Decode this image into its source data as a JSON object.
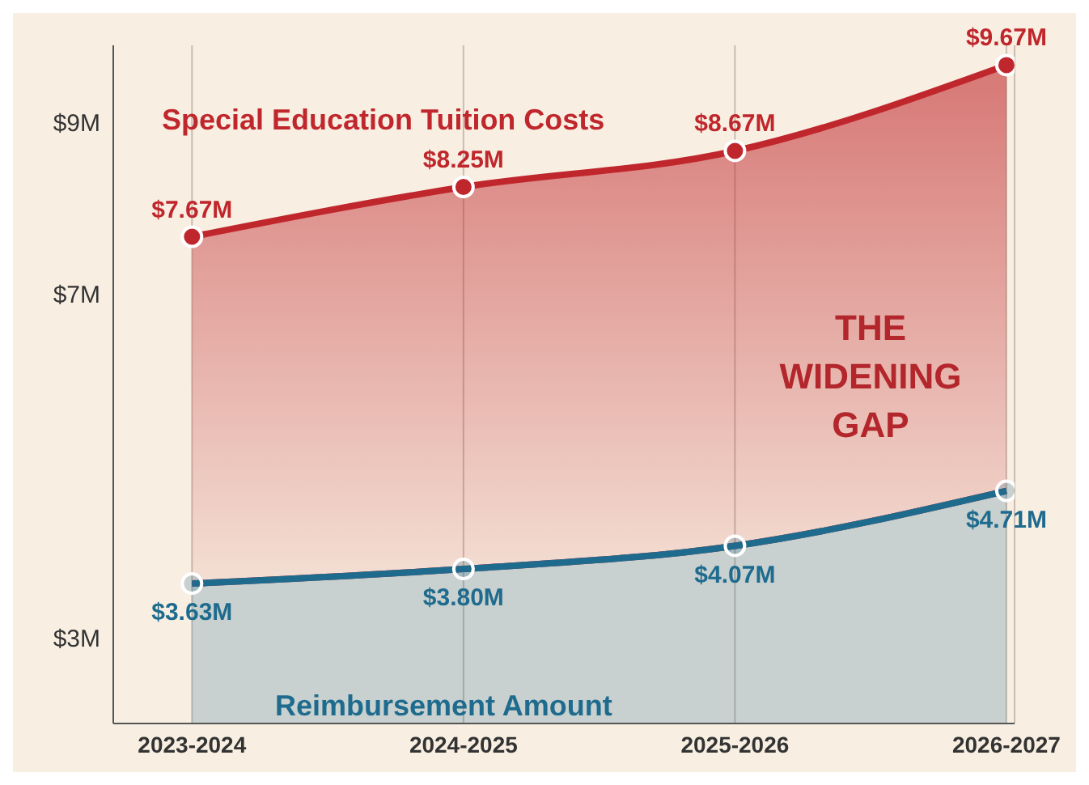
{
  "chart_data": {
    "type": "area",
    "categories": [
      "2023-2024",
      "2024-2025",
      "2025-2026",
      "2026-2027"
    ],
    "series": [
      {
        "name": "Special Education Tuition Costs",
        "color": "#c0272d",
        "values": [
          7.67,
          8.25,
          8.67,
          9.67
        ],
        "value_labels": [
          "$7.67M",
          "$8.25M",
          "$8.67M",
          "$9.67M"
        ]
      },
      {
        "name": "Reimbursement Amount",
        "color": "#1f6b8e",
        "values": [
          3.63,
          3.8,
          4.07,
          4.71
        ],
        "value_labels": [
          "$3.63M",
          "$3.80M",
          "$4.07M",
          "$4.71M"
        ]
      }
    ],
    "ylim": [
      2,
      9.9
    ],
    "yticks": [
      {
        "value": 3,
        "label": "$3M"
      },
      {
        "value": 7,
        "label": "$7M"
      },
      {
        "value": 9,
        "label": "$9M"
      }
    ],
    "annotations": [
      "THE WIDENING GAP"
    ],
    "grid": "x",
    "marker": "circle"
  }
}
